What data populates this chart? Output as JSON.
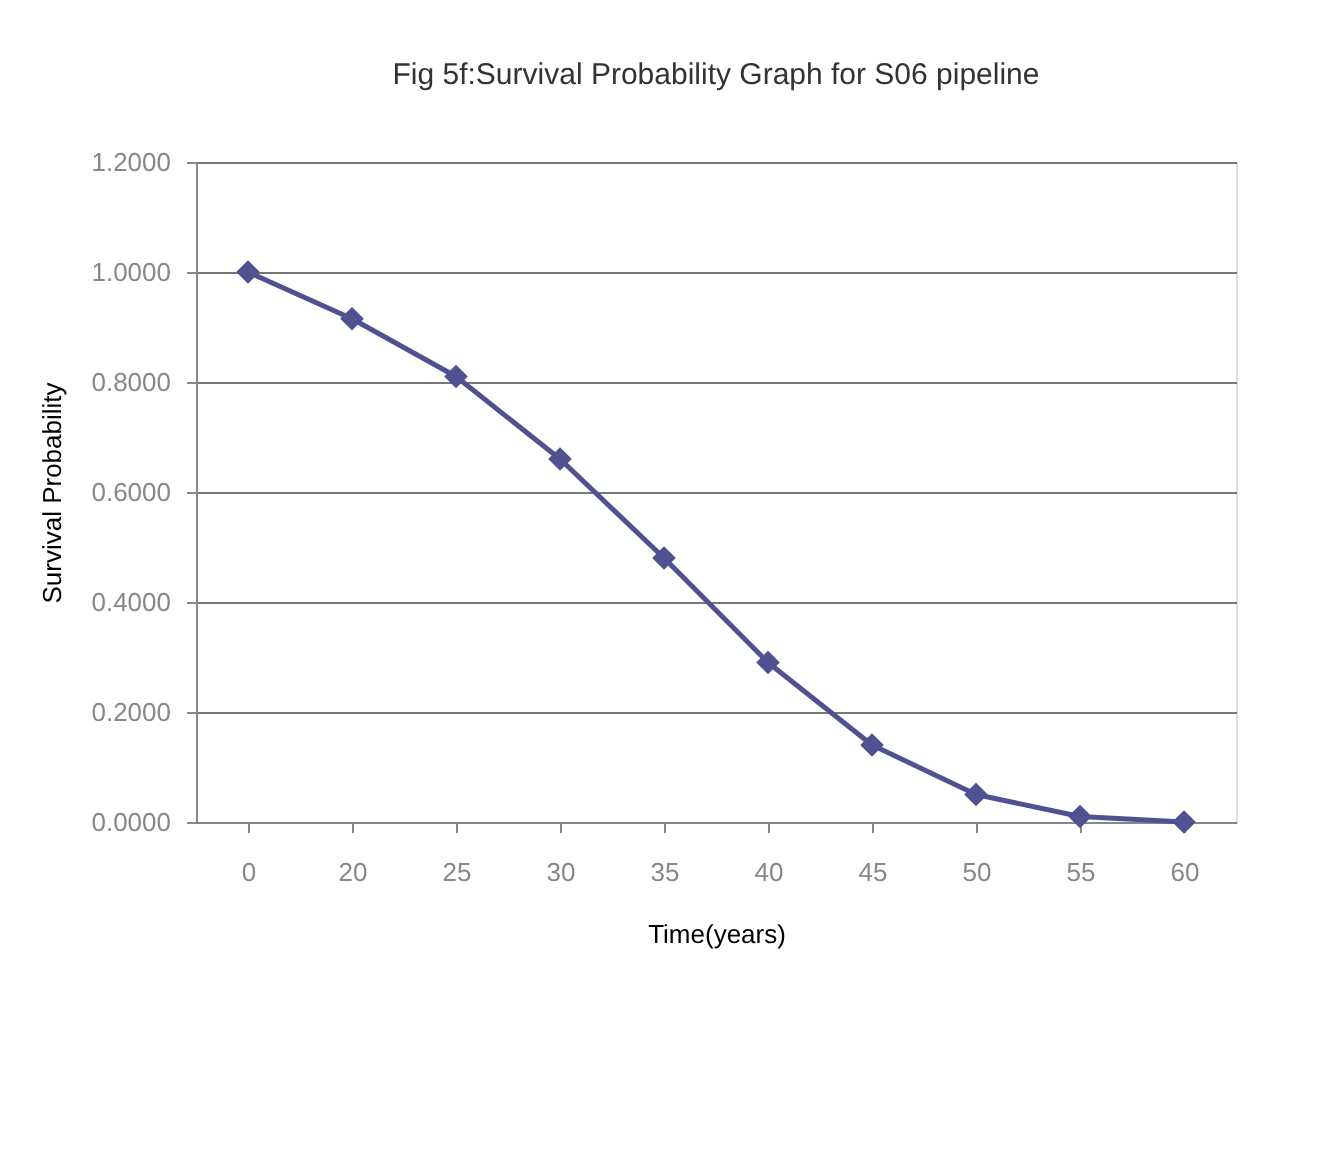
{
  "chart_data": {
    "type": "line",
    "title": "Fig 5f:Survival Probability Graph for S06 pipeline",
    "xlabel": "Time(years)",
    "ylabel": "Survival Probability",
    "categories": [
      "0",
      "20",
      "25",
      "30",
      "35",
      "40",
      "45",
      "50",
      "55",
      "60"
    ],
    "series": [
      {
        "color": "#4f5190",
        "values": [
          1.0,
          0.915,
          0.81,
          0.66,
          0.48,
          0.29,
          0.14,
          0.05,
          0.01,
          0.0
        ]
      }
    ],
    "ylim": [
      0,
      1.2
    ],
    "yticks": [
      {
        "value": 0,
        "label": "0.0000"
      },
      {
        "value": 0.2,
        "label": "0.2000"
      },
      {
        "value": 0.4,
        "label": "0.4000"
      },
      {
        "value": 0.6,
        "label": "0.6000"
      },
      {
        "value": 0.8,
        "label": "0.8000"
      },
      {
        "value": 1.0,
        "label": "1.0000"
      },
      {
        "value": 1.2,
        "label": "1.2000"
      }
    ],
    "grid": "y",
    "marker": "diamond",
    "line_style": "solid"
  }
}
